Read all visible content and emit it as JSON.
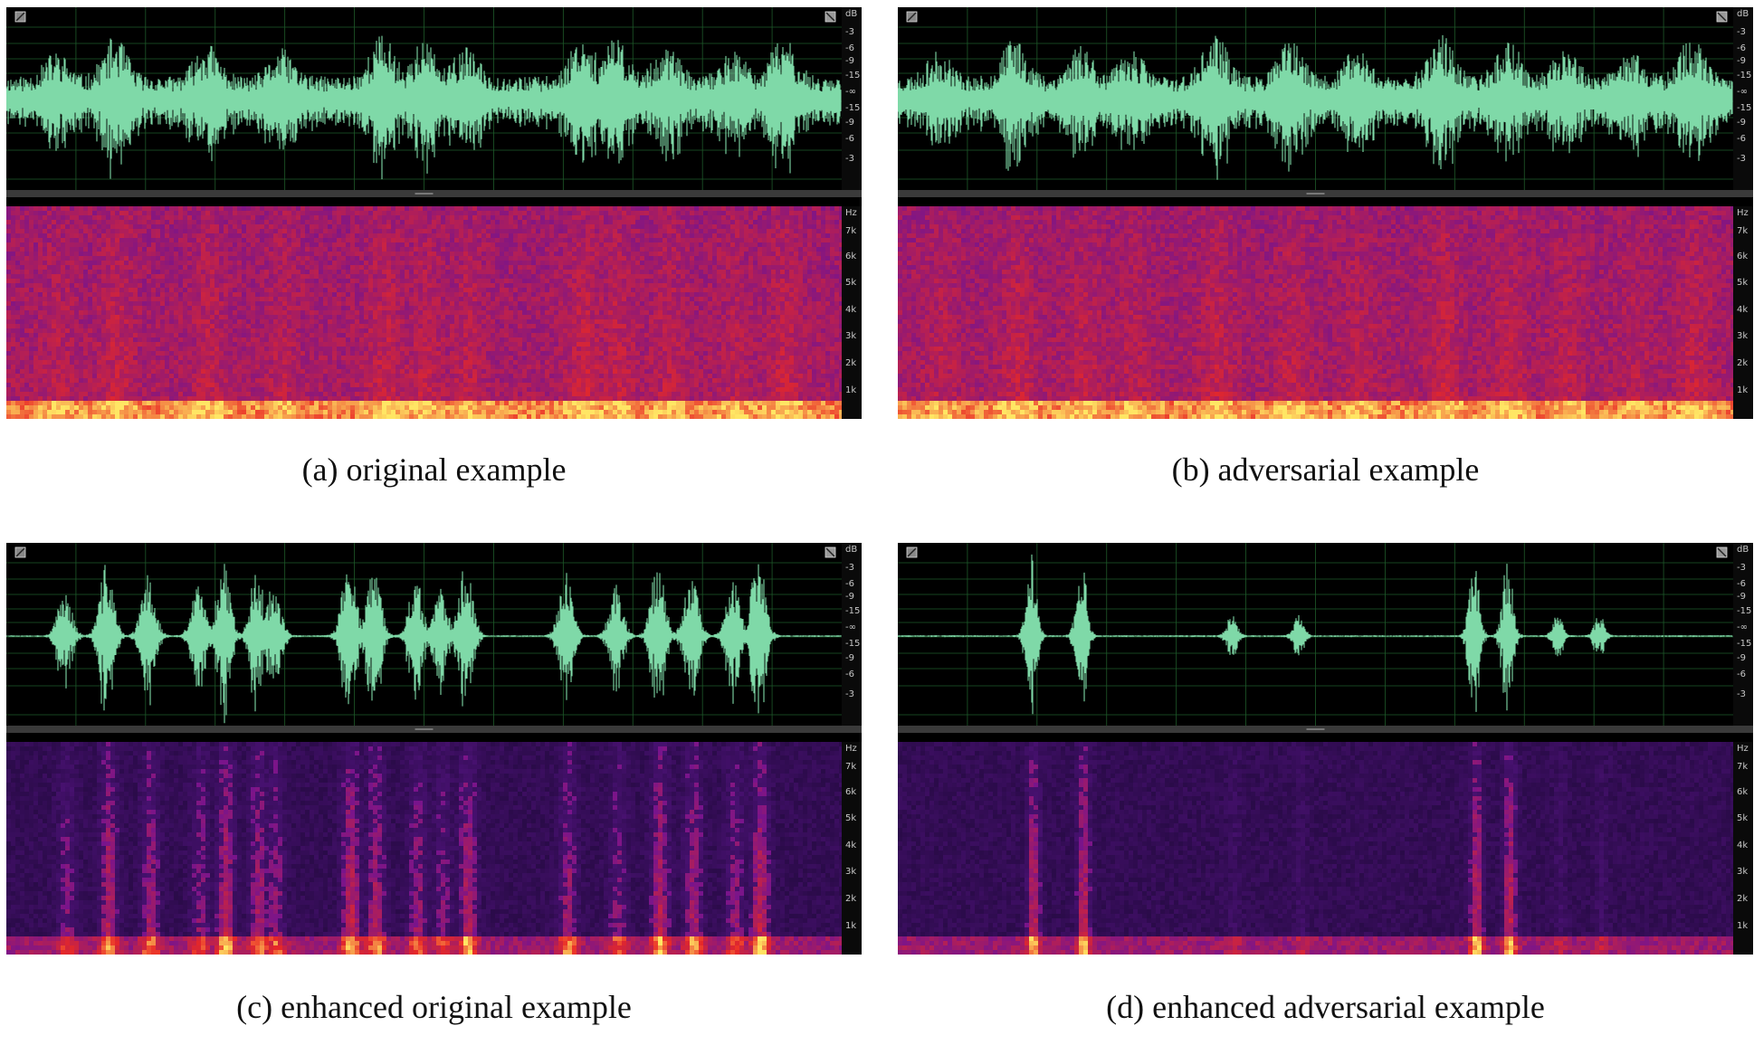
{
  "colors": {
    "background": "#ffffff",
    "panel_bg": "#000000",
    "grid": "#1e5a2a",
    "waveform": "#7fd9a8",
    "spectrogram_low": "#2b0a4a",
    "spectrogram_mid": "#e0202a",
    "spectrogram_high": "#ffe36b"
  },
  "labels": {
    "db_unit": "dB",
    "db_ticks": [
      "-3",
      "-6",
      "-9",
      "-15",
      "-∞",
      "-15",
      "-9",
      "-6",
      "-3"
    ],
    "hz_unit": "Hz",
    "hz_ticks": [
      "7k",
      "6k",
      "5k",
      "4k",
      "3k",
      "2k",
      "1k"
    ]
  },
  "panels": [
    {
      "id": "a",
      "caption": "(a) original example",
      "style": "noisy",
      "seed": 11,
      "bursts": [
        0.06,
        0.13,
        0.24,
        0.33,
        0.45,
        0.5,
        0.55,
        0.69,
        0.73,
        0.79,
        0.87,
        0.93
      ]
    },
    {
      "id": "b",
      "caption": "(b) adversarial example",
      "style": "noisy",
      "seed": 23,
      "bursts": [
        0.05,
        0.14,
        0.22,
        0.28,
        0.38,
        0.47,
        0.55,
        0.65,
        0.73,
        0.8,
        0.88,
        0.95
      ]
    },
    {
      "id": "c",
      "caption": "(c) enhanced original example",
      "style": "enhanced",
      "seed": 37,
      "bursts": [
        0.07,
        0.12,
        0.17,
        0.23,
        0.26,
        0.3,
        0.32,
        0.41,
        0.44,
        0.49,
        0.52,
        0.55,
        0.67,
        0.73,
        0.78,
        0.82,
        0.87,
        0.9
      ]
    },
    {
      "id": "d",
      "caption": "(d) enhanced adversarial example",
      "style": "sparse",
      "seed": 51,
      "bursts": [
        0.16,
        0.22,
        0.4,
        0.48,
        0.69,
        0.73,
        0.79,
        0.84
      ]
    }
  ]
}
